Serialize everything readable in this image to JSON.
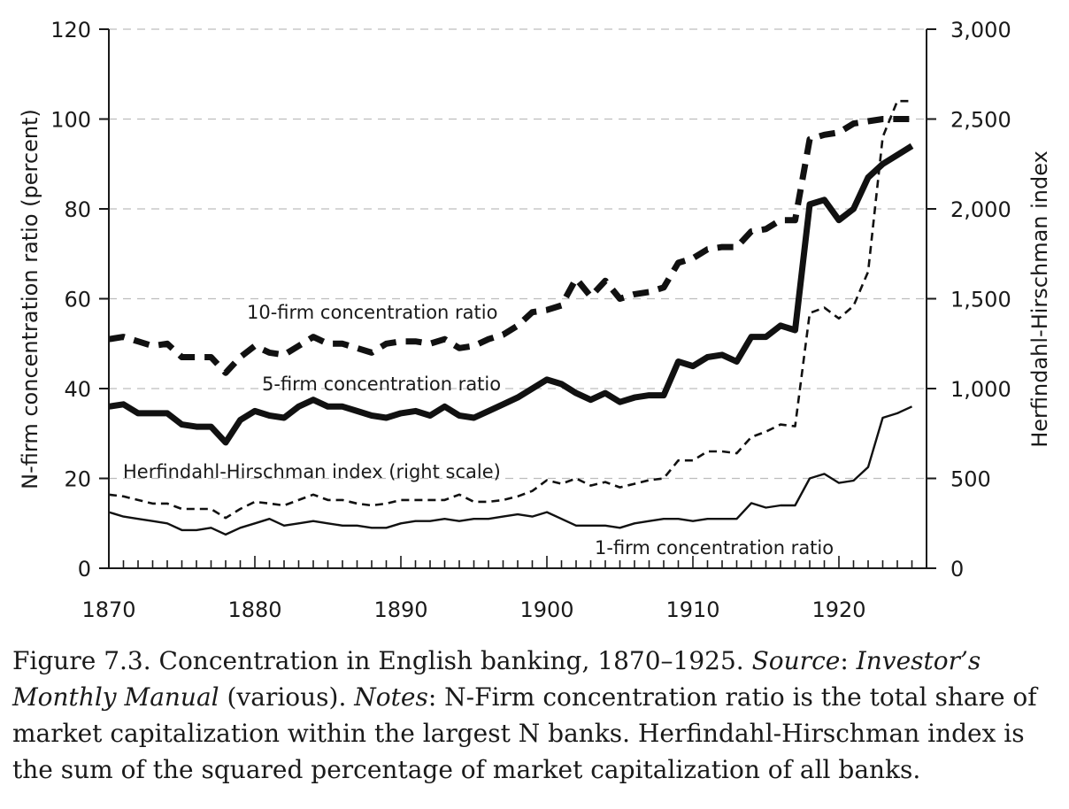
{
  "chart_data": {
    "type": "line",
    "xlabel": "",
    "ylabel": "N-firm concentration ratio (percent)",
    "y2label": "Herfindahl-Hirschman index",
    "xlim": [
      1870,
      1926
    ],
    "ylim": [
      0,
      120
    ],
    "y2lim": [
      0,
      3000
    ],
    "x_ticks": [
      "1870",
      "1880",
      "1890",
      "1900",
      "1910",
      "1920"
    ],
    "y_ticks": [
      "0",
      "20",
      "40",
      "60",
      "80",
      "100",
      "120"
    ],
    "y2_ticks": [
      "0",
      "500",
      "1,000",
      "1,500",
      "2,000",
      "2,500",
      "3,000"
    ],
    "grid": "horizontal dashed",
    "x": [
      1870,
      1871,
      1872,
      1873,
      1874,
      1875,
      1876,
      1877,
      1878,
      1879,
      1880,
      1881,
      1882,
      1883,
      1884,
      1885,
      1886,
      1887,
      1888,
      1889,
      1890,
      1891,
      1892,
      1893,
      1894,
      1895,
      1896,
      1897,
      1898,
      1899,
      1900,
      1901,
      1902,
      1903,
      1904,
      1905,
      1906,
      1907,
      1908,
      1909,
      1910,
      1911,
      1912,
      1913,
      1914,
      1915,
      1916,
      1917,
      1918,
      1919,
      1920,
      1921,
      1922,
      1923,
      1924,
      1925
    ],
    "series": [
      {
        "name": "10-firm concentration ratio",
        "axis": "left",
        "style": "thick-dashed",
        "values": [
          51,
          51.5,
          50.5,
          49.5,
          50,
          47,
          47,
          47,
          43.5,
          47,
          49.5,
          48,
          47.5,
          49.5,
          51.5,
          50,
          50,
          49,
          48,
          50,
          50.5,
          50.5,
          50,
          51,
          49,
          49.5,
          51,
          52,
          54,
          57,
          57.5,
          58.5,
          64.5,
          60.5,
          64,
          60,
          61,
          61.5,
          62.5,
          68,
          69,
          71,
          71.5,
          71.5,
          75,
          75.5,
          77.5,
          77.5,
          95.5,
          96.5,
          97,
          99,
          99.5,
          100,
          100,
          100
        ]
      },
      {
        "name": "5-firm concentration ratio",
        "axis": "left",
        "style": "thick-solid",
        "values": [
          36,
          36.5,
          34.5,
          34.5,
          34.5,
          32,
          31.5,
          31.5,
          28,
          33,
          35,
          34,
          33.5,
          36,
          37.5,
          36,
          36,
          35,
          34,
          33.5,
          34.5,
          35,
          34,
          36,
          34,
          33.5,
          35,
          36.5,
          38,
          40,
          42,
          41,
          39,
          37.5,
          39,
          37,
          38,
          38.5,
          38.5,
          46,
          45,
          47,
          47.5,
          46,
          51.5,
          51.5,
          54,
          53,
          81,
          82,
          77.5,
          80,
          87,
          90,
          92,
          94
        ]
      },
      {
        "name": "Herfindahl-Hirschman index (right scale)",
        "axis": "right",
        "style": "thin-dashed",
        "values": [
          410,
          400,
          380,
          360,
          360,
          330,
          330,
          330,
          280,
          330,
          370,
          360,
          350,
          380,
          410,
          380,
          380,
          360,
          350,
          360,
          380,
          380,
          380,
          380,
          410,
          370,
          370,
          380,
          400,
          430,
          490,
          470,
          500,
          460,
          480,
          450,
          470,
          490,
          500,
          600,
          600,
          650,
          650,
          640,
          730,
          760,
          800,
          790,
          1420,
          1450,
          1390,
          1460,
          1650,
          2400,
          2600,
          2600
        ]
      },
      {
        "name": "1-firm concentration ratio",
        "axis": "left",
        "style": "thin-solid",
        "values": [
          12.5,
          11.5,
          11,
          10.5,
          10,
          8.5,
          8.5,
          9,
          7.5,
          9,
          10,
          11,
          9.5,
          10,
          10.5,
          10,
          9.5,
          9.5,
          9,
          9,
          10,
          10.5,
          10.5,
          11,
          10.5,
          11,
          11,
          11.5,
          12,
          11.5,
          12.5,
          11,
          9.5,
          9.5,
          9.5,
          9,
          10,
          10.5,
          11,
          11,
          10.5,
          11,
          11,
          11,
          14.5,
          13.5,
          14,
          14,
          20,
          21,
          19,
          19.5,
          22.5,
          33.5,
          34.5,
          36
        ]
      }
    ]
  },
  "caption": {
    "fig": "Figure 7.3. Concentration in English banking, 1870–1925. ",
    "source_label": "Source",
    "source_sep": ": ",
    "source_title": "Investor’s Monthly Manual",
    "source_tail": " (various). ",
    "notes_label": "Notes",
    "notes_text": ": N-Firm concentration ratio is the total share of market capitalization within the largest N banks. Herfindahl-Hirschman index is the sum of the squared percentage of market capitalization of all banks."
  }
}
